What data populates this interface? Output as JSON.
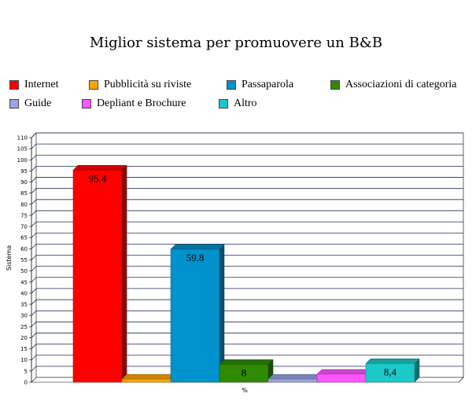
{
  "chart_data": {
    "type": "bar",
    "title": "Miglior sistema per promuovere un B&B",
    "xlabel": "%",
    "ylabel": "Sistema",
    "ylim": [
      0,
      110
    ],
    "ytick_step": 5,
    "grid": true,
    "legend_position": "top",
    "series": [
      {
        "name": "Internet",
        "value": 95.4,
        "label": "95,4",
        "color": "#ff0000"
      },
      {
        "name": "Pubblicità su riviste",
        "value": 1.4,
        "label": "",
        "color": "#ffa500"
      },
      {
        "name": "Passaparola",
        "value": 59.8,
        "label": "59,8",
        "color": "#0092cc"
      },
      {
        "name": "Associazioni di categoria",
        "value": 8,
        "label": "8",
        "color": "#2e8b00"
      },
      {
        "name": "Guide",
        "value": 1.4,
        "label": "",
        "color": "#9aa3e6"
      },
      {
        "name": "Depliant e Brochure",
        "value": 3.6,
        "label": "",
        "color": "#ff55ff"
      },
      {
        "name": "Altro",
        "value": 8.4,
        "label": "8,4",
        "color": "#1cc9c9"
      }
    ]
  }
}
